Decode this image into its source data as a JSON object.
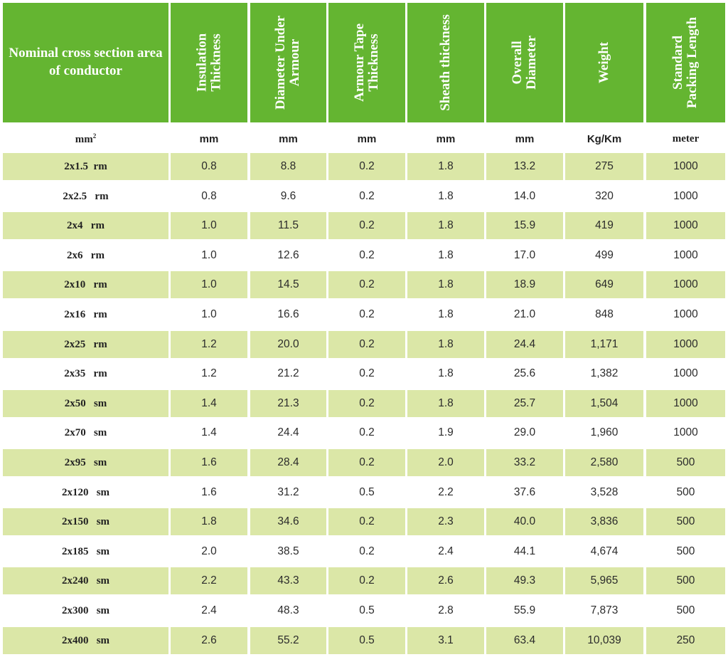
{
  "headers": [
    "Nominal cross section area of conductor",
    "Insulation\nThickness",
    "Diameter Under\nArmour",
    "Armour Tape\nThickness",
    "Sheath thickness",
    "Overall\nDiameter",
    "Weight",
    "Standard\nPacking Length"
  ],
  "units": [
    "mm²",
    "mm",
    "mm",
    "mm",
    "mm",
    "mm",
    "Kg/Km",
    "meter"
  ],
  "rows": [
    [
      "2x1.5  rm",
      "0.8",
      "8.8",
      "0.2",
      "1.8",
      "13.2",
      "275",
      "1000"
    ],
    [
      "2x2.5   rm",
      "0.8",
      "9.6",
      "0.2",
      "1.8",
      "14.0",
      "320",
      "1000"
    ],
    [
      "2x4   rm",
      "1.0",
      "11.5",
      "0.2",
      "1.8",
      "15.9",
      "419",
      "1000"
    ],
    [
      "2x6   rm",
      "1.0",
      "12.6",
      "0.2",
      "1.8",
      "17.0",
      "499",
      "1000"
    ],
    [
      "2x10   rm",
      "1.0",
      "14.5",
      "0.2",
      "1.8",
      "18.9",
      "649",
      "1000"
    ],
    [
      "2x16   rm",
      "1.0",
      "16.6",
      "0.2",
      "1.8",
      "21.0",
      "848",
      "1000"
    ],
    [
      "2x25   rm",
      "1.2",
      "20.0",
      "0.2",
      "1.8",
      "24.4",
      "1,171",
      "1000"
    ],
    [
      "2x35   rm",
      "1.2",
      "21.2",
      "0.2",
      "1.8",
      "25.6",
      "1,382",
      "1000"
    ],
    [
      "2x50   sm",
      "1.4",
      "21.3",
      "0.2",
      "1.8",
      "25.7",
      "1,504",
      "1000"
    ],
    [
      "2x70   sm",
      "1.4",
      "24.4",
      "0.2",
      "1.9",
      "29.0",
      "1,960",
      "1000"
    ],
    [
      "2x95   sm",
      "1.6",
      "28.4",
      "0.2",
      "2.0",
      "33.2",
      "2,580",
      "500"
    ],
    [
      "2x120   sm",
      "1.6",
      "31.2",
      "0.5",
      "2.2",
      "37.6",
      "3,528",
      "500"
    ],
    [
      "2x150   sm",
      "1.8",
      "34.6",
      "0.2",
      "2.3",
      "40.0",
      "3,836",
      "500"
    ],
    [
      "2x185   sm",
      "2.0",
      "38.5",
      "0.2",
      "2.4",
      "44.1",
      "4,674",
      "500"
    ],
    [
      "2x240   sm",
      "2.2",
      "43.3",
      "0.2",
      "2.6",
      "49.3",
      "5,965",
      "500"
    ],
    [
      "2x300   sm",
      "2.4",
      "48.3",
      "0.5",
      "2.8",
      "55.9",
      "7,873",
      "500"
    ],
    [
      "2x400   sm",
      "2.6",
      "55.2",
      "0.5",
      "3.1",
      "63.4",
      "10,039",
      "250"
    ]
  ],
  "colors": {
    "header_bg": "#64b531",
    "band_bg": "#dbe7a7",
    "header_text": "#ffffff"
  }
}
